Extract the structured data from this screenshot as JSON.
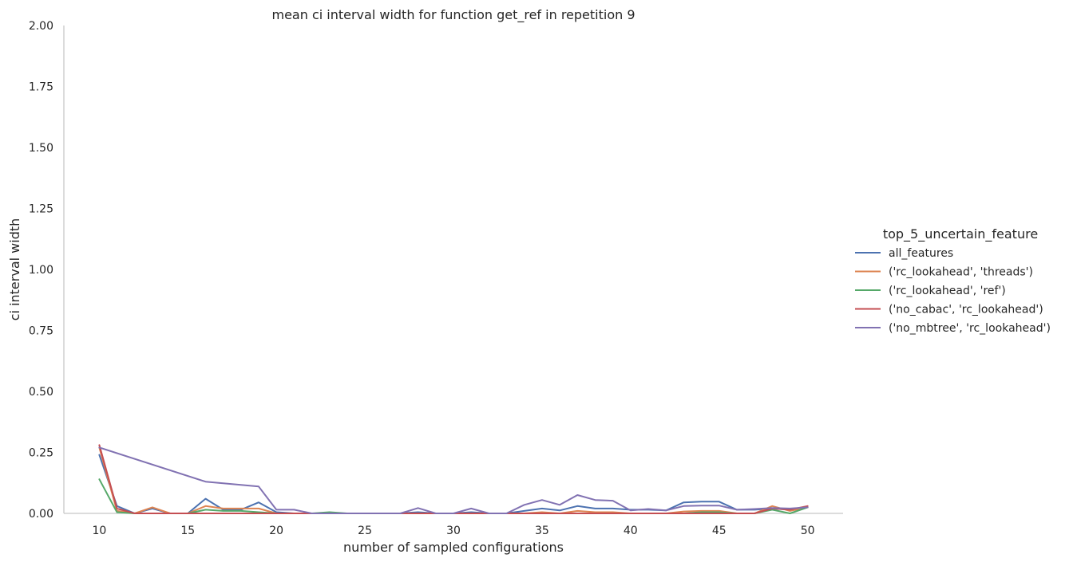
{
  "chart_data": {
    "type": "line",
    "title": "mean ci interval width for function get_ref in repetition 9",
    "xlabel": "number of sampled configurations",
    "ylabel": "ci interval width",
    "xlim": [
      8,
      52
    ],
    "ylim": [
      0,
      2
    ],
    "xticks": [
      "10",
      "15",
      "20",
      "25",
      "30",
      "35",
      "40",
      "45",
      "50"
    ],
    "xtick_values": [
      10,
      15,
      20,
      25,
      30,
      35,
      40,
      45,
      50
    ],
    "yticks": [
      "0.00",
      "0.25",
      "0.50",
      "0.75",
      "1.00",
      "1.25",
      "1.50",
      "1.75",
      "2.00"
    ],
    "ytick_values": [
      0,
      0.25,
      0.5,
      0.75,
      1.0,
      1.25,
      1.5,
      1.75,
      2.0
    ],
    "grid": false,
    "legend_title": "top_5_uncertain_feature",
    "legend_position": "right",
    "x": [
      10,
      11,
      12,
      13,
      14,
      15,
      16,
      17,
      18,
      19,
      20,
      21,
      22,
      23,
      24,
      25,
      26,
      27,
      28,
      29,
      30,
      31,
      32,
      33,
      34,
      35,
      36,
      37,
      38,
      39,
      40,
      41,
      42,
      43,
      44,
      45,
      46,
      47,
      48,
      49,
      50
    ],
    "series": [
      {
        "name": "all_features",
        "color": "#4c72b0",
        "values": [
          0.24,
          0.03,
          0.0,
          0.02,
          0.0,
          0.0,
          0.06,
          0.015,
          0.015,
          0.045,
          0.005,
          0.0,
          0.0,
          0.0,
          0.0,
          0.0,
          0.0,
          0.0,
          0.005,
          0.0,
          0.0,
          0.005,
          0.0,
          0.0,
          0.01,
          0.02,
          0.012,
          0.03,
          0.02,
          0.02,
          0.015,
          0.015,
          0.012,
          0.045,
          0.048,
          0.048,
          0.015,
          0.015,
          0.02,
          0.015,
          0.025
        ]
      },
      {
        "name": "('rc_lookahead', 'threads')",
        "color": "#dd8452",
        "values": [
          0.27,
          0.01,
          0.0,
          0.025,
          0.0,
          0.0,
          0.03,
          0.02,
          0.02,
          0.02,
          0.0,
          0.0,
          0.0,
          0.0,
          0.0,
          0.0,
          0.0,
          0.0,
          0.0,
          0.0,
          0.0,
          0.0,
          0.0,
          0.0,
          0.0,
          0.005,
          0.0,
          0.01,
          0.005,
          0.005,
          0.0,
          0.0,
          0.0,
          0.008,
          0.01,
          0.01,
          0.0,
          0.0,
          0.03,
          0.01,
          0.025
        ]
      },
      {
        "name": "('rc_lookahead', 'ref')",
        "color": "#55a868",
        "values": [
          0.14,
          0.005,
          0.0,
          0.0,
          0.0,
          0.0,
          0.015,
          0.01,
          0.01,
          0.005,
          0.0,
          0.0,
          0.0,
          0.005,
          0.0,
          0.0,
          0.0,
          0.0,
          0.0,
          0.0,
          0.0,
          0.0,
          0.0,
          0.0,
          0.0,
          0.0,
          0.0,
          0.0,
          0.0,
          0.0,
          0.0,
          0.0,
          0.0,
          0.0,
          0.005,
          0.005,
          0.0,
          0.0,
          0.015,
          0.0,
          0.025
        ]
      },
      {
        "name": "('no_cabac', 'rc_lookahead')",
        "color": "#c44e52",
        "values": [
          0.28,
          0.02,
          0.0,
          0.0,
          0.0,
          0.0,
          0.0,
          0.0,
          0.0,
          0.0,
          0.0,
          0.0,
          0.0,
          0.0,
          0.0,
          0.0,
          0.0,
          0.0,
          0.0,
          0.0,
          0.0,
          0.0,
          0.0,
          0.0,
          0.0,
          0.0,
          0.0,
          0.0,
          0.0,
          0.0,
          0.0,
          0.0,
          0.0,
          0.0,
          0.0,
          0.0,
          0.0,
          0.0,
          0.02,
          0.015,
          0.03
        ]
      },
      {
        "name": "('no_mbtree', 'rc_lookahead')",
        "color": "#8172b2",
        "values": [
          0.27,
          null,
          null,
          null,
          null,
          null,
          0.13,
          null,
          null,
          0.11,
          0.015,
          0.015,
          0.0,
          0.0,
          0.0,
          0.0,
          0.0,
          0.0,
          0.022,
          0.0,
          0.0,
          0.02,
          0.0,
          0.0,
          0.035,
          0.055,
          0.035,
          0.075,
          0.055,
          0.052,
          0.012,
          0.018,
          0.012,
          0.03,
          0.032,
          0.032,
          0.015,
          0.018,
          0.022,
          0.02,
          0.025
        ]
      }
    ]
  }
}
